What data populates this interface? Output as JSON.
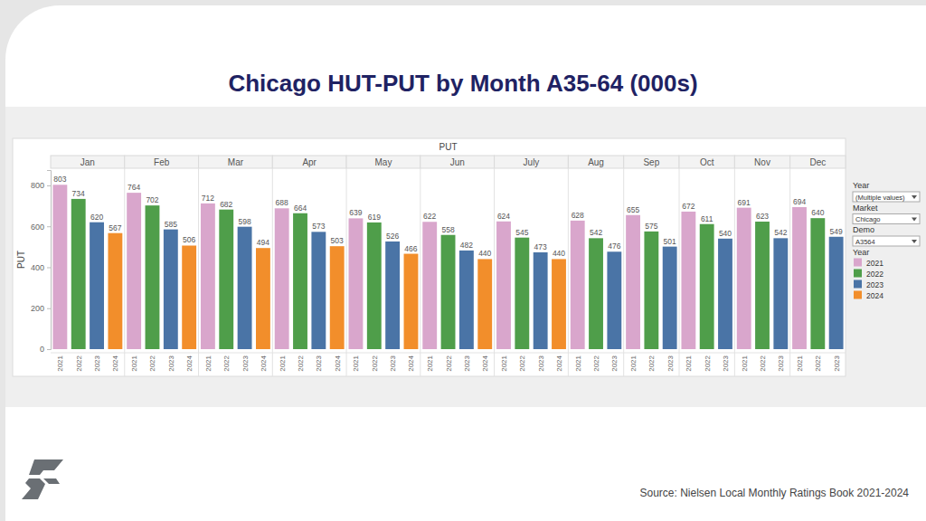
{
  "chart_data": {
    "type": "bar",
    "title": "Chicago HUT-PUT by Month A35-64 (000s)",
    "header": "PUT",
    "y_label": "PUT",
    "source": "Source: Nielsen Local Monthly Ratings Book 2021-2024",
    "categories": [
      "Jan",
      "Feb",
      "Mar",
      "Apr",
      "May",
      "Jun",
      "July",
      "Aug",
      "Sep",
      "Oct",
      "Nov",
      "Dec"
    ],
    "series": [
      {
        "name": "2021",
        "color": "#d9a6cc",
        "values": [
          803,
          764,
          712,
          688,
          639,
          622,
          624,
          628,
          655,
          672,
          691,
          694
        ]
      },
      {
        "name": "2022",
        "color": "#4f9e4a",
        "values": [
          734,
          702,
          682,
          664,
          619,
          558,
          545,
          542,
          575,
          611,
          623,
          640
        ]
      },
      {
        "name": "2023",
        "color": "#4a74a6",
        "values": [
          620,
          585,
          598,
          573,
          526,
          482,
          473,
          476,
          501,
          540,
          542,
          549
        ]
      },
      {
        "name": "2024",
        "color": "#f28e2b",
        "values": [
          567,
          506,
          494,
          503,
          466,
          440,
          440,
          null,
          null,
          null,
          null,
          null
        ]
      }
    ],
    "ylim": [
      0,
      875
    ],
    "yticks": [
      0,
      200,
      400,
      600,
      800
    ],
    "grid": false,
    "data_labels": true,
    "legend": "right",
    "legend_title": "Year",
    "filters": [
      {
        "label": "Year",
        "value": "(Multiple values)"
      },
      {
        "label": "Market",
        "value": "Chicago"
      },
      {
        "label": "Demo",
        "value": "A3564"
      }
    ]
  }
}
